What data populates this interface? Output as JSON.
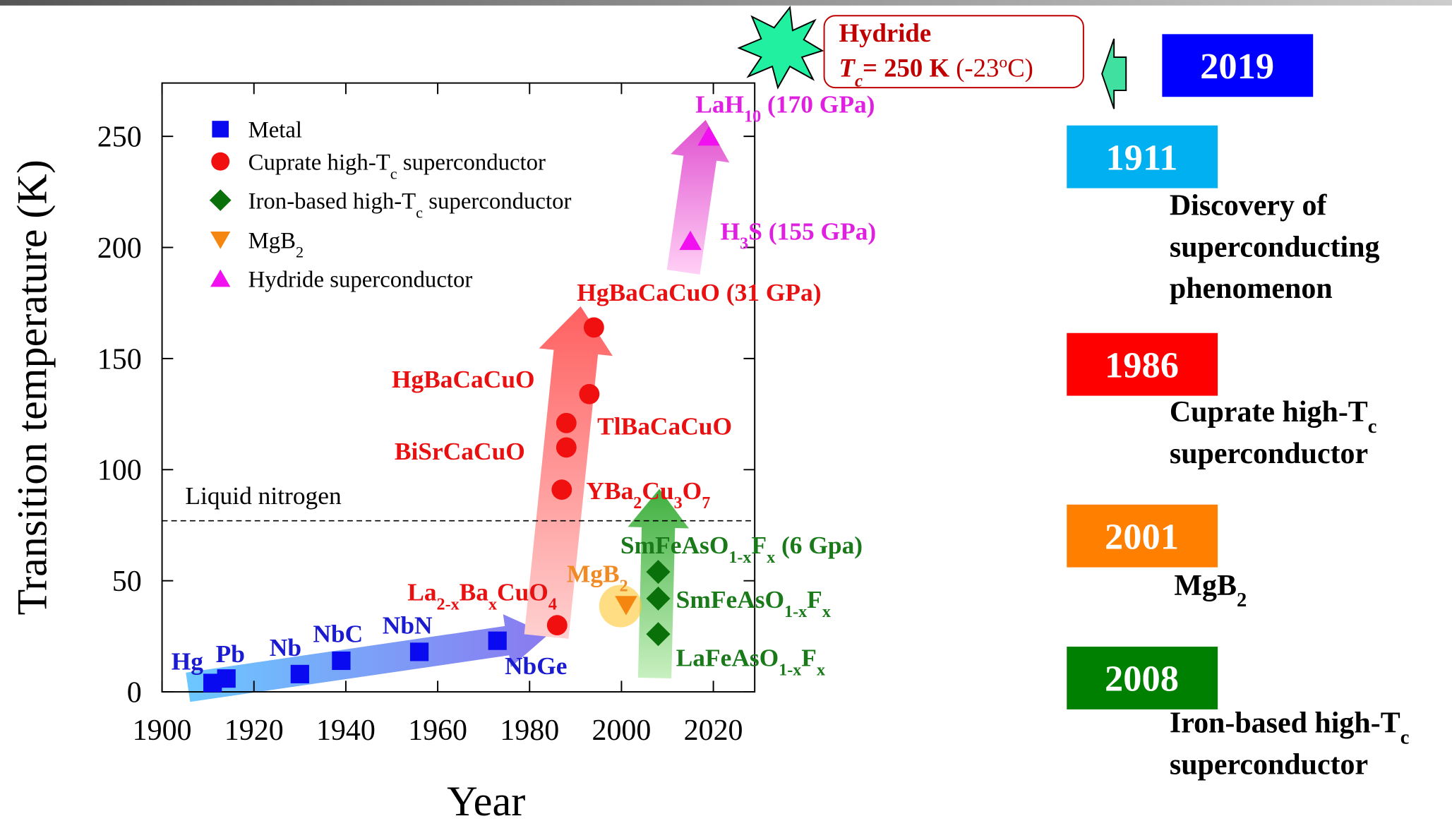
{
  "chart_data": {
    "type": "scatter",
    "xlabel": "Year",
    "ylabel": "Transition temperature (K)",
    "xlim": [
      1900,
      2029
    ],
    "ylim": [
      0,
      274
    ],
    "xticks": [
      1900,
      1920,
      1940,
      1960,
      1980,
      2000,
      2020
    ],
    "yticks": [
      0,
      50,
      100,
      150,
      200,
      250
    ],
    "reference_line": {
      "value": 77,
      "label": "Liquid nitrogen"
    },
    "legend": "upper left",
    "series": [
      {
        "name": [
          "Metal"
        ],
        "color": "#0a0af0",
        "marker": "square",
        "x": [
          1911,
          1914,
          1930,
          1939,
          1956,
          1973
        ],
        "values": [
          4,
          6,
          8,
          14,
          18,
          23
        ],
        "labels": [
          [
            "Hg"
          ],
          [
            "Pb"
          ],
          [
            "Nb"
          ],
          [
            "NbC"
          ],
          [
            "NbN"
          ],
          [
            "NbGe"
          ]
        ]
      },
      {
        "name": [
          "Cuprate high-T",
          "c",
          " superconductor"
        ],
        "color": "#f01010",
        "marker": "circle",
        "x": [
          1986,
          1987,
          1988,
          1988,
          1993,
          1994
        ],
        "values": [
          30,
          91,
          110,
          121,
          134,
          164
        ],
        "labels": [
          [
            "La",
            "2-x",
            "Ba",
            "x",
            "CuO",
            "4"
          ],
          [
            "YBa",
            "2",
            "Cu",
            "3",
            "O",
            "7"
          ],
          [
            "BiSrCaCuO"
          ],
          [
            "TlBaCaCuO"
          ],
          [
            "HgBaCaCuO"
          ],
          [
            "HgBaCaCuO (31 GPa)"
          ]
        ]
      },
      {
        "name": [
          "Iron-based high-T",
          "c",
          " superconductor"
        ],
        "color": "#0a700a",
        "marker": "diamond",
        "x": [
          2008,
          2008,
          2008
        ],
        "values": [
          26,
          42,
          54
        ],
        "labels": [
          [
            "LaFeAsO",
            "1-x",
            "F",
            "x"
          ],
          [
            "SmFeAsO",
            "1-x",
            "F",
            "x"
          ],
          [
            "SmFeAsO",
            "1-x",
            "F",
            "x",
            " (6 Gpa)"
          ]
        ]
      },
      {
        "name": [
          "MgB",
          "2"
        ],
        "color": "#f5860f",
        "marker": "triangle-down",
        "x": [
          2001
        ],
        "values": [
          39
        ],
        "labels": [
          [
            "MgB",
            "2"
          ]
        ]
      },
      {
        "name": [
          "Hydride superconductor"
        ],
        "color": "#f010f0",
        "marker": "triangle-up",
        "x": [
          2015,
          2019
        ],
        "values": [
          203,
          250
        ],
        "labels": [
          [
            "H",
            "3",
            "S (155 GPa)"
          ],
          [
            "LaH",
            "10",
            " (170 GPa)"
          ]
        ]
      }
    ]
  },
  "sidebar": {
    "callout": {
      "title": "Hydride",
      "line": [
        "T",
        "c",
        "= 250 K",
        " (-23",
        "o",
        "C)"
      ]
    },
    "timeline": [
      {
        "year": "2019",
        "color": "#0000ff"
      },
      {
        "year": "1911",
        "color": "#00b0f0",
        "description": [
          [
            "Discovery of"
          ],
          [
            "superconducting"
          ],
          [
            "phenomenon"
          ]
        ]
      },
      {
        "year": "1986",
        "color": "#ff0000",
        "description": [
          [
            "Cuprate high-T",
            "c"
          ],
          [
            "superconductor"
          ]
        ]
      },
      {
        "year": "2001",
        "color": "#ff8000",
        "description": [
          [
            "MgB",
            "2"
          ]
        ]
      },
      {
        "year": "2008",
        "color": "#008000",
        "description": [
          [
            "Iron-based high-T",
            "c"
          ],
          [
            "superconductor"
          ]
        ]
      }
    ]
  }
}
